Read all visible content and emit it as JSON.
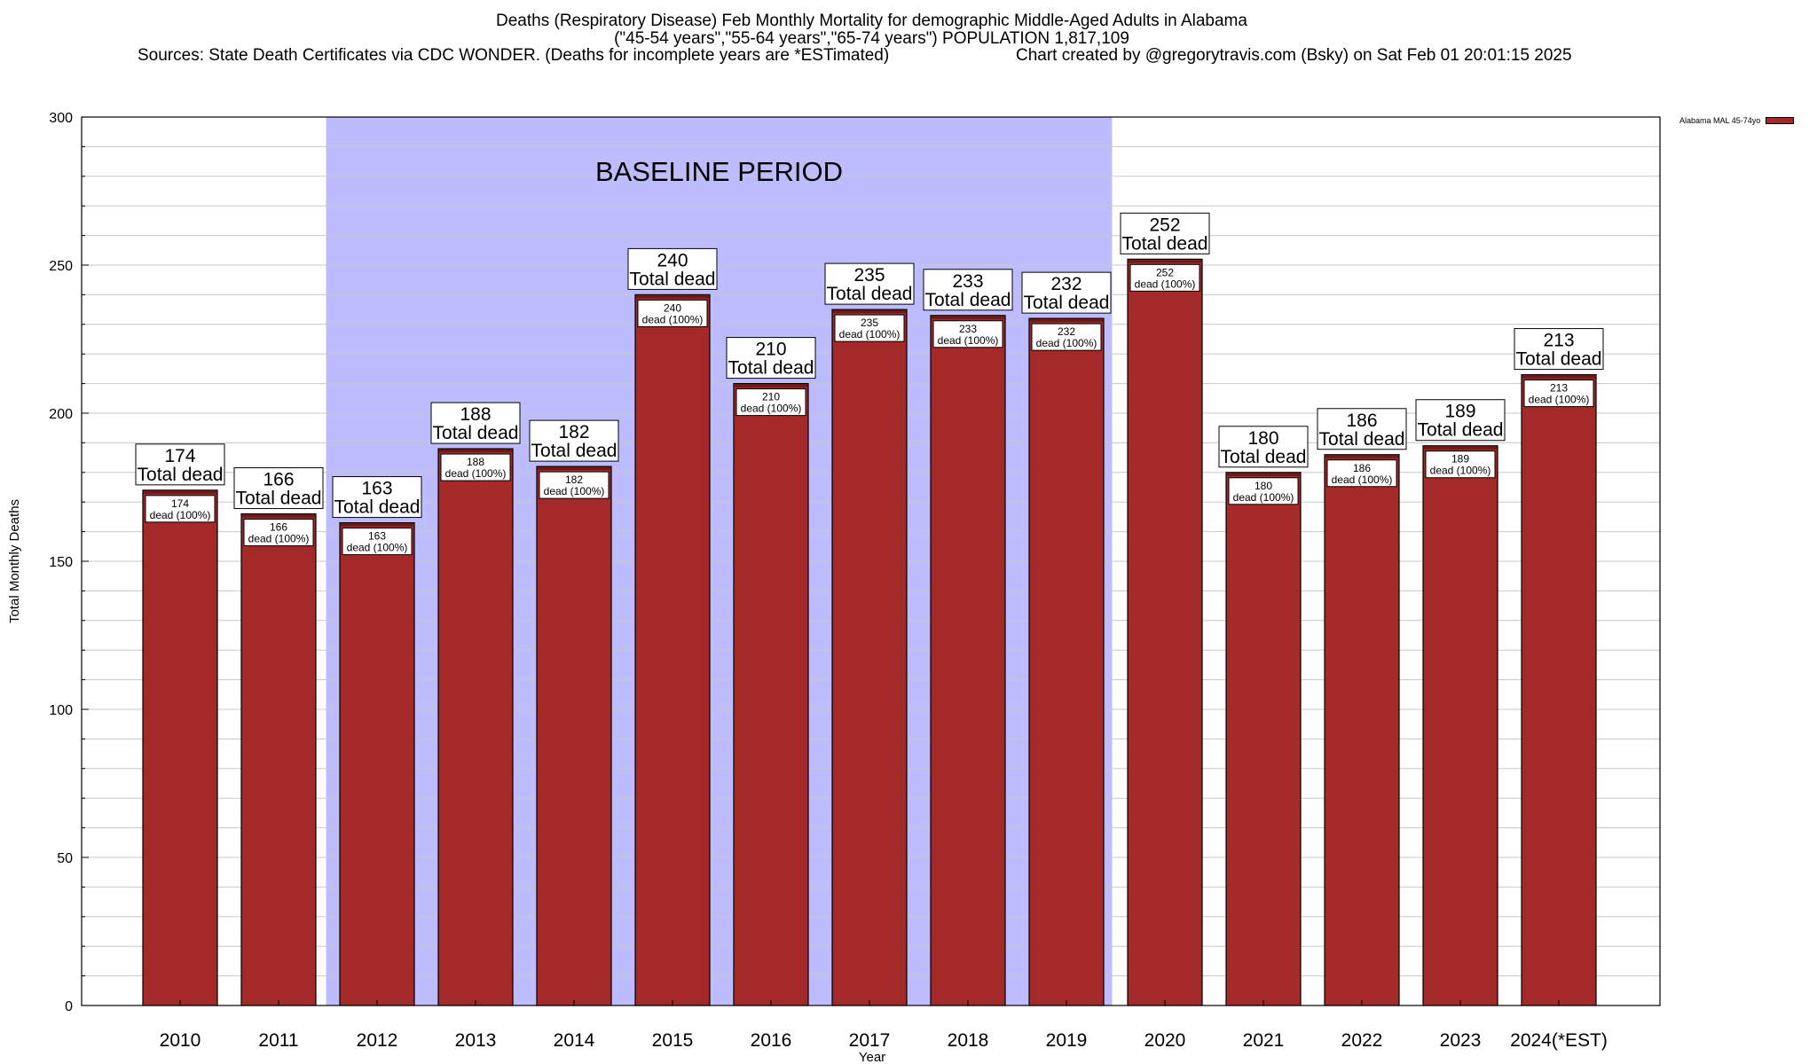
{
  "chart_data": {
    "type": "bar",
    "title": "Deaths (Respiratory Disease) Feb Monthly Mortality for demographic Middle-Aged Adults in Alabama",
    "subtitle": "(\"45-54 years\",\"55-64 years\",\"65-74 years\") POPULATION 1,817,109",
    "sources": "Sources: State Death Certificates via CDC WONDER. (Deaths for incomplete years are *ESTimated)",
    "credit": "Chart created by @gregorytravis.com (Bsky) on Sat Feb 01 20:01:15 2025",
    "xlabel": "Year",
    "ylabel": "Total Monthly Deaths",
    "ylim": [
      0,
      300
    ],
    "yticks": [
      0,
      50,
      100,
      150,
      200,
      250,
      300
    ],
    "grid": true,
    "legend_position": "top-right",
    "categories": [
      "2010",
      "2011",
      "2012",
      "2013",
      "2014",
      "2015",
      "2016",
      "2017",
      "2018",
      "2019",
      "2020",
      "2021",
      "2022",
      "2023",
      "2024(*EST)"
    ],
    "series": [
      {
        "name": "Alabama MAL 45-74yo",
        "values": [
          174,
          166,
          163,
          188,
          182,
          240,
          210,
          235,
          233,
          232,
          252,
          180,
          186,
          189,
          213
        ]
      }
    ],
    "total_label_suffix": "Total dead",
    "inner_label_suffix": "dead (100%)",
    "baseline": {
      "label": "BASELINE PERIOD",
      "start": "2012",
      "end": "2019"
    },
    "colors": {
      "bar": "#a42a2a",
      "bar_top": "#6a1a1a",
      "baseline": "#bcbcff",
      "grid": "#c8c8c8"
    }
  }
}
